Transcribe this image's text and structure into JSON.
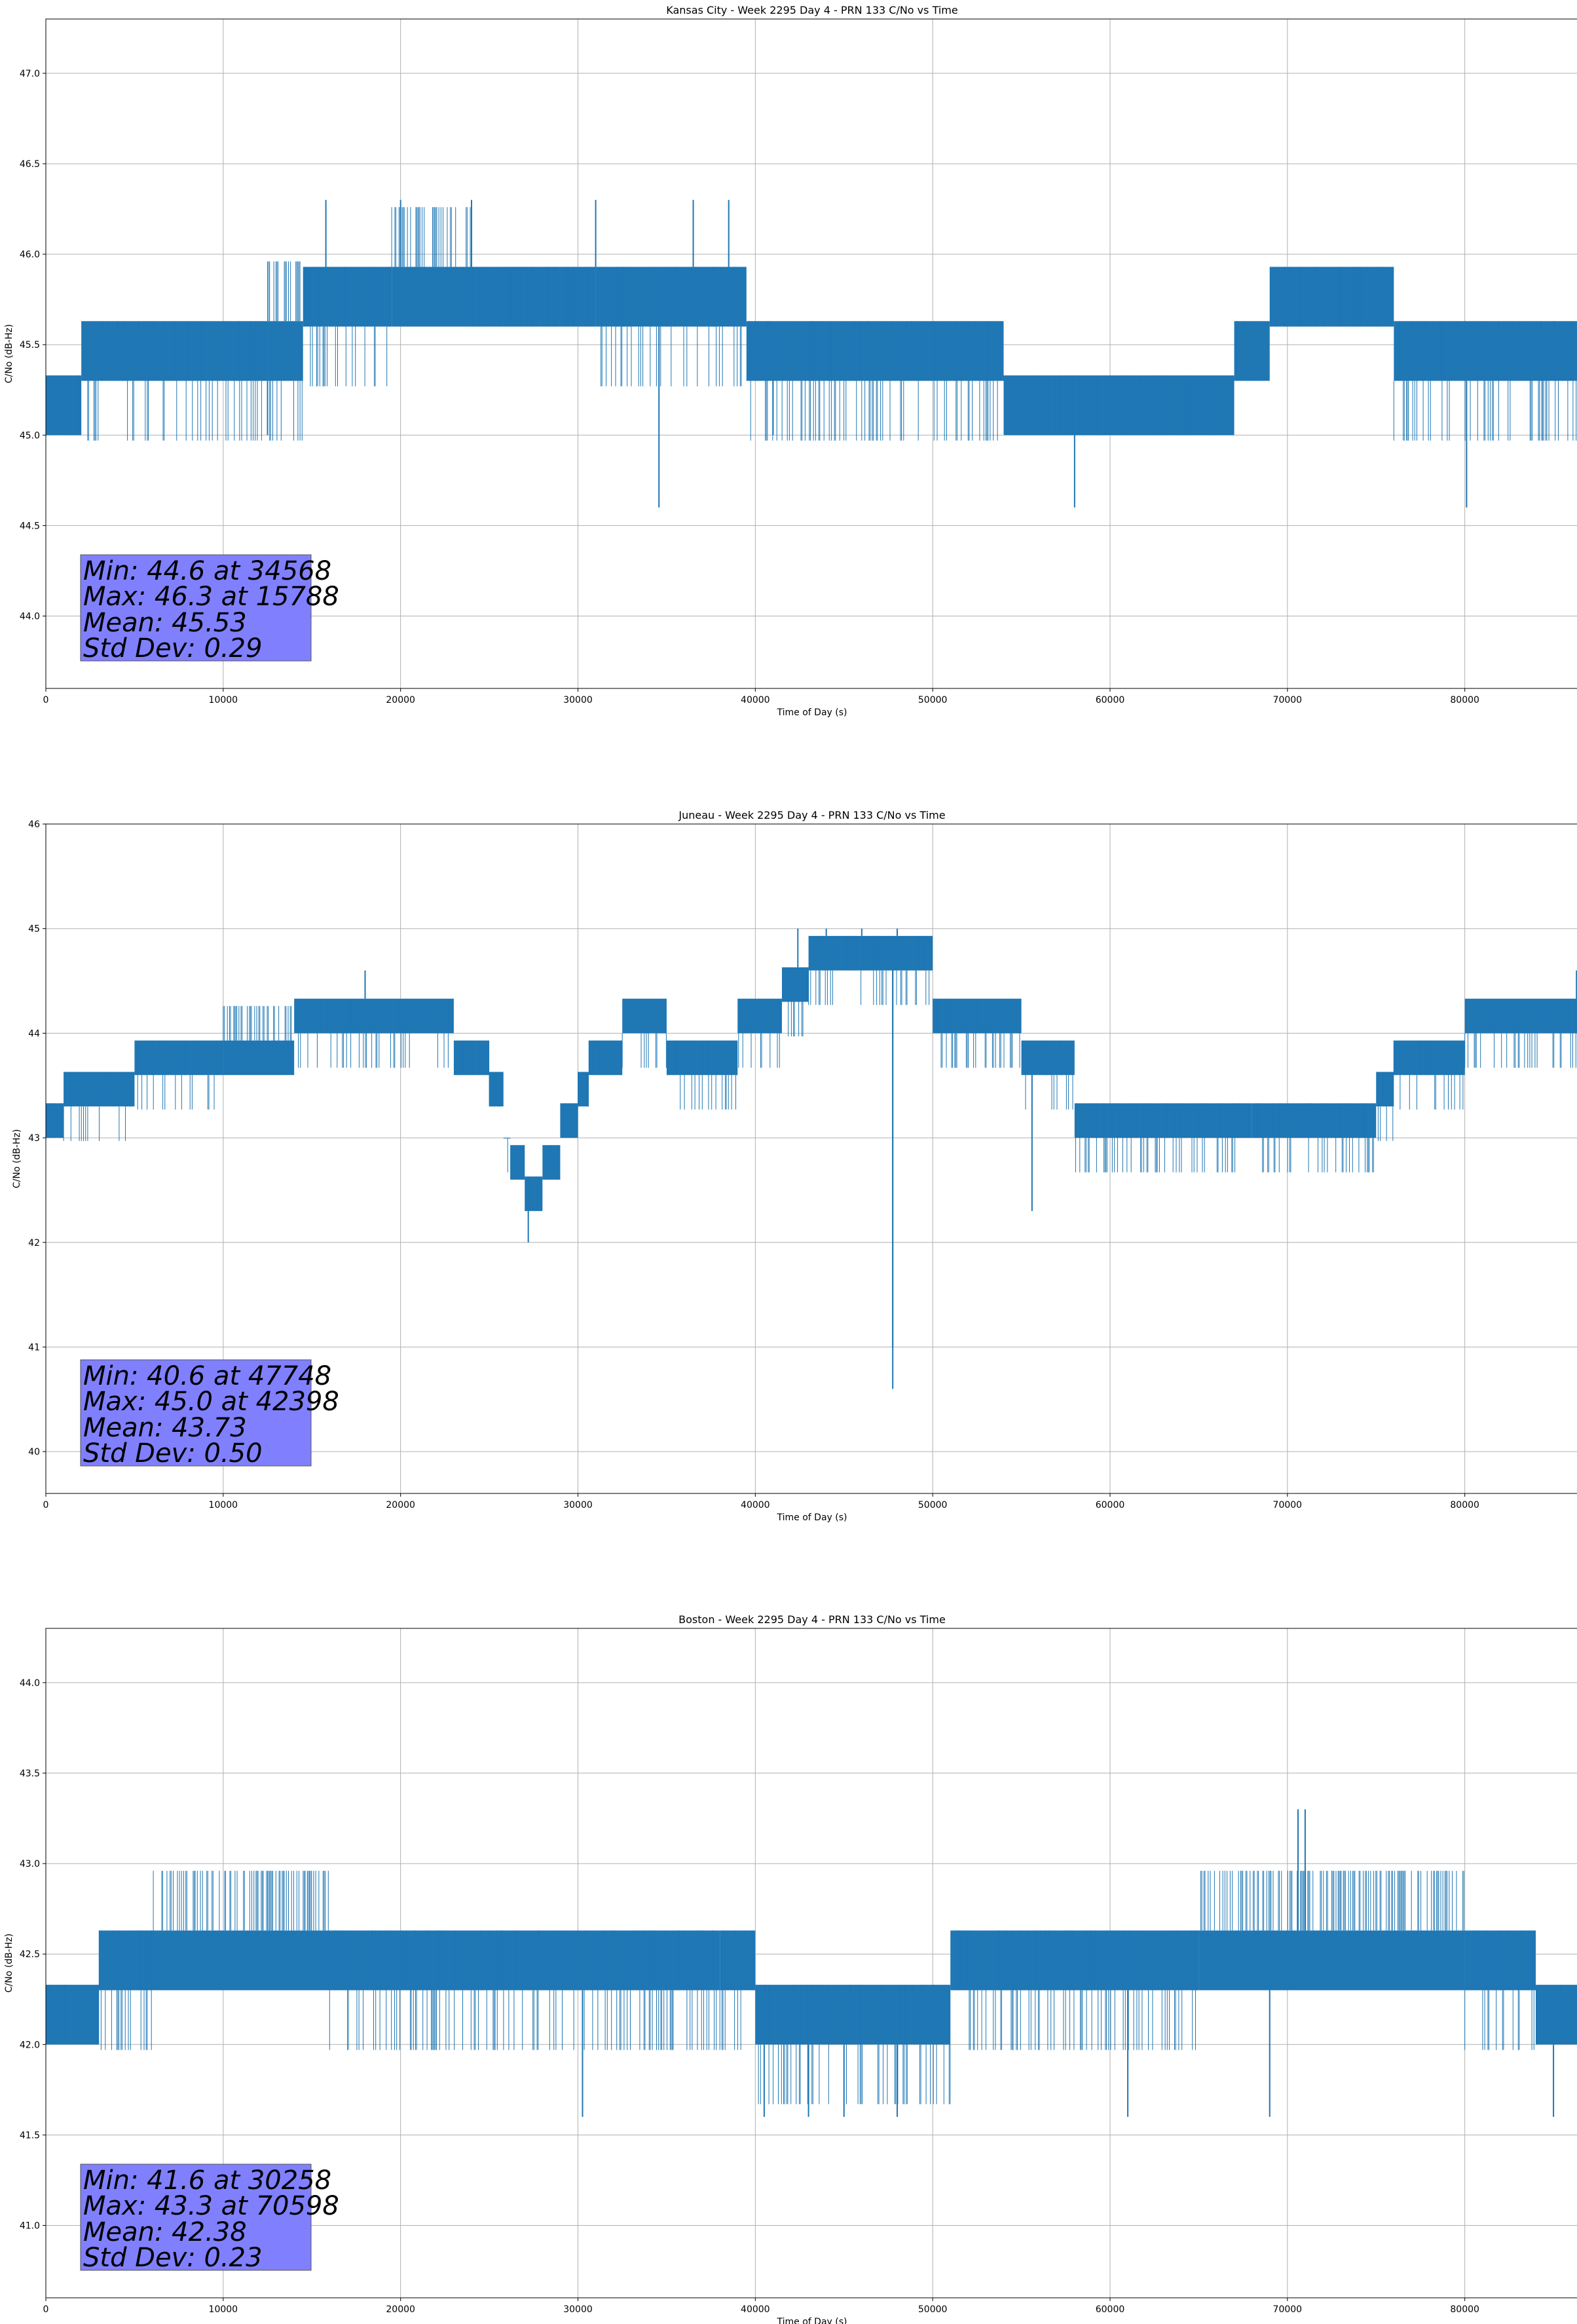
{
  "figure": {
    "type": "matplotlib-figure",
    "panels": 3
  },
  "chart_data": [
    {
      "type": "line",
      "title": "Kansas City - Week 2295 Day 4 - PRN 133 C/No vs Time",
      "xlabel": "Time of Day (s)",
      "ylabel": "C/No (dB-Hz)",
      "xlim": [
        0,
        86400
      ],
      "ylim": [
        43.6,
        47.3
      ],
      "xticks": [
        0,
        10000,
        20000,
        30000,
        40000,
        50000,
        60000,
        70000,
        80000
      ],
      "yticks": [
        44.0,
        44.5,
        45.0,
        45.5,
        46.0,
        46.5,
        47.0
      ],
      "grid": true,
      "color": "#1f77b4",
      "levels_step": 0.33,
      "profile": [
        {
          "x": 0,
          "base": 45.0,
          "up": 1,
          "dn": 0
        },
        {
          "x": 2000,
          "base": 45.3,
          "up": 1,
          "dn": 1
        },
        {
          "x": 12500,
          "base": 45.3,
          "up": 2,
          "dn": 1
        },
        {
          "x": 14500,
          "base": 45.6,
          "up": 1,
          "dn": 1
        },
        {
          "x": 19500,
          "base": 45.6,
          "up": 2,
          "dn": 0
        },
        {
          "x": 24000,
          "base": 45.6,
          "up": 1,
          "dn": 0
        },
        {
          "x": 31000,
          "base": 45.6,
          "up": 1,
          "dn": 1
        },
        {
          "x": 39500,
          "base": 45.3,
          "up": 1,
          "dn": 1
        },
        {
          "x": 52000,
          "base": 45.3,
          "up": 1,
          "dn": 1
        },
        {
          "x": 54000,
          "base": 45.0,
          "up": 1,
          "dn": 0
        },
        {
          "x": 67000,
          "base": 45.3,
          "up": 1,
          "dn": 0
        },
        {
          "x": 69000,
          "base": 45.6,
          "up": 1,
          "dn": 0
        },
        {
          "x": 76000,
          "base": 45.3,
          "up": 1,
          "dn": 1
        },
        {
          "x": 86400,
          "base": 45.3,
          "up": 1,
          "dn": 0
        }
      ],
      "spikes": [
        [
          34568,
          44.6
        ],
        [
          58000,
          44.6
        ],
        [
          80100,
          44.6
        ],
        [
          41000,
          45.0
        ],
        [
          12500,
          45.0
        ],
        [
          15788,
          46.3
        ],
        [
          20000,
          46.3
        ],
        [
          24000,
          46.3
        ],
        [
          31000,
          46.3
        ],
        [
          36500,
          46.3
        ],
        [
          38500,
          46.3
        ]
      ],
      "stats": {
        "min": "Min: 44.6 at 34568",
        "max": "Max: 46.3 at 15788",
        "mean": "Mean: 45.53",
        "std": "Std Dev: 0.29"
      }
    },
    {
      "type": "line",
      "title": "Juneau - Week 2295 Day 4 - PRN 133 C/No vs Time",
      "xlabel": "Time of Day (s)",
      "ylabel": "C/No (dB-Hz)",
      "xlim": [
        0,
        86400
      ],
      "ylim": [
        39.6,
        46.0
      ],
      "xticks": [
        0,
        10000,
        20000,
        30000,
        40000,
        50000,
        60000,
        70000,
        80000
      ],
      "yticks": [
        40,
        41,
        42,
        43,
        44,
        45,
        46
      ],
      "grid": true,
      "color": "#1f77b4",
      "levels_step": 0.33,
      "profile": [
        {
          "x": 0,
          "base": 43.0,
          "up": 1,
          "dn": 0
        },
        {
          "x": 1000,
          "base": 43.3,
          "up": 1,
          "dn": 1
        },
        {
          "x": 5000,
          "base": 43.6,
          "up": 1,
          "dn": 1
        },
        {
          "x": 10000,
          "base": 43.6,
          "up": 2,
          "dn": 0
        },
        {
          "x": 14000,
          "base": 44.0,
          "up": 1,
          "dn": 1
        },
        {
          "x": 23000,
          "base": 43.6,
          "up": 1,
          "dn": 0
        },
        {
          "x": 25000,
          "base": 43.3,
          "up": 1,
          "dn": 0
        },
        {
          "x": 25800,
          "base": 43.0,
          "up": 0,
          "dn": 1
        },
        {
          "x": 26200,
          "base": 42.6,
          "up": 1,
          "dn": 0
        },
        {
          "x": 27000,
          "base": 42.3,
          "up": 1,
          "dn": 0
        },
        {
          "x": 28000,
          "base": 42.6,
          "up": 1,
          "dn": 0
        },
        {
          "x": 29000,
          "base": 43.0,
          "up": 1,
          "dn": 0
        },
        {
          "x": 30000,
          "base": 43.3,
          "up": 1,
          "dn": 0
        },
        {
          "x": 30600,
          "base": 43.6,
          "up": 1,
          "dn": 0
        },
        {
          "x": 32500,
          "base": 44.0,
          "up": 1,
          "dn": 1
        },
        {
          "x": 35000,
          "base": 43.6,
          "up": 1,
          "dn": 1
        },
        {
          "x": 39000,
          "base": 44.0,
          "up": 1,
          "dn": 1
        },
        {
          "x": 41500,
          "base": 44.3,
          "up": 1,
          "dn": 1
        },
        {
          "x": 43000,
          "base": 44.6,
          "up": 1,
          "dn": 1
        },
        {
          "x": 50000,
          "base": 44.0,
          "up": 1,
          "dn": 1
        },
        {
          "x": 55000,
          "base": 43.6,
          "up": 1,
          "dn": 1
        },
        {
          "x": 58000,
          "base": 43.0,
          "up": 1,
          "dn": 1
        },
        {
          "x": 68000,
          "base": 43.0,
          "up": 1,
          "dn": 1
        },
        {
          "x": 75000,
          "base": 43.3,
          "up": 1,
          "dn": 1
        },
        {
          "x": 76000,
          "base": 43.6,
          "up": 1,
          "dn": 1
        },
        {
          "x": 80000,
          "base": 44.0,
          "up": 1,
          "dn": 1
        },
        {
          "x": 86400,
          "base": 44.0,
          "up": 2,
          "dn": 0
        }
      ],
      "spikes": [
        [
          47748,
          40.6
        ],
        [
          47748,
          41.0
        ],
        [
          27200,
          42.0
        ],
        [
          55600,
          42.3
        ],
        [
          18000,
          44.6
        ],
        [
          42398,
          45.0
        ],
        [
          44000,
          45.0
        ],
        [
          46000,
          45.0
        ],
        [
          48000,
          45.0
        ],
        [
          86300,
          44.6
        ]
      ],
      "stats": {
        "min": "Min: 40.6 at 47748",
        "max": "Max: 45.0 at 42398",
        "mean": "Mean: 43.73",
        "std": "Std Dev: 0.50"
      }
    },
    {
      "type": "line",
      "title": "Boston - Week 2295 Day 4 - PRN 133 C/No vs Time",
      "xlabel": "Time of Day (s)",
      "ylabel": "C/No (dB-Hz)",
      "xlim": [
        0,
        86400
      ],
      "ylim": [
        40.6,
        44.3
      ],
      "xticks": [
        0,
        10000,
        20000,
        30000,
        40000,
        50000,
        60000,
        70000,
        80000
      ],
      "yticks": [
        41.0,
        41.5,
        42.0,
        42.5,
        43.0,
        43.5,
        44.0
      ],
      "grid": true,
      "color": "#1f77b4",
      "levels_step": 0.33,
      "profile": [
        {
          "x": 0,
          "base": 42.0,
          "up": 1,
          "dn": 0
        },
        {
          "x": 3000,
          "base": 42.3,
          "up": 1,
          "dn": 1
        },
        {
          "x": 6000,
          "base": 42.3,
          "up": 2,
          "dn": 0
        },
        {
          "x": 16000,
          "base": 42.3,
          "up": 1,
          "dn": 1
        },
        {
          "x": 38000,
          "base": 42.3,
          "up": 1,
          "dn": 1
        },
        {
          "x": 40000,
          "base": 42.0,
          "up": 1,
          "dn": 1
        },
        {
          "x": 51000,
          "base": 42.3,
          "up": 1,
          "dn": 0
        },
        {
          "x": 52000,
          "base": 42.3,
          "up": 1,
          "dn": 1
        },
        {
          "x": 65000,
          "base": 42.3,
          "up": 2,
          "dn": 0
        },
        {
          "x": 80000,
          "base": 42.3,
          "up": 1,
          "dn": 1
        },
        {
          "x": 84000,
          "base": 42.0,
          "up": 1,
          "dn": 0
        },
        {
          "x": 86400,
          "base": 42.0,
          "up": 2,
          "dn": 0
        }
      ],
      "spikes": [
        [
          30258,
          41.6
        ],
        [
          40500,
          41.6
        ],
        [
          43000,
          41.6
        ],
        [
          45000,
          41.6
        ],
        [
          48000,
          41.6
        ],
        [
          61000,
          41.6
        ],
        [
          69000,
          41.6
        ],
        [
          85000,
          41.6
        ],
        [
          70598,
          43.3
        ],
        [
          71000,
          43.3
        ]
      ],
      "stats": {
        "min": "Min: 41.6 at 30258",
        "max": "Max: 43.3 at 70598",
        "mean": "Mean: 42.38",
        "std": "Std Dev: 0.23"
      }
    }
  ]
}
